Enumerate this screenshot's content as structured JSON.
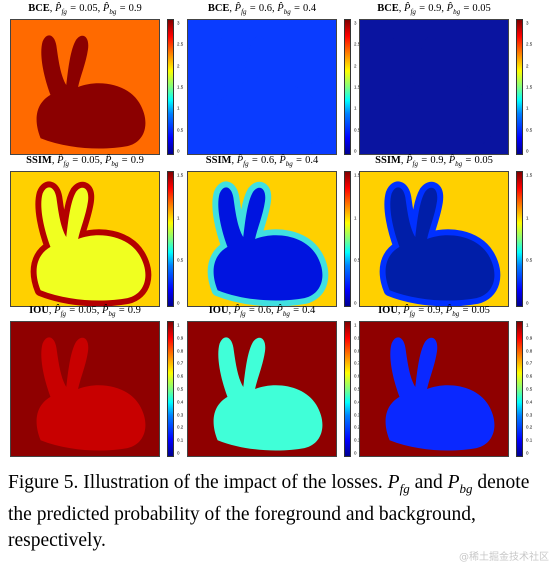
{
  "panels": [
    {
      "loss": "BCE",
      "fg": "0.05",
      "bg": "0.9",
      "bgColor": "#ff6a00",
      "rabbitColor": "#8b0000",
      "halo": "",
      "cbar": [
        "3",
        "2.5",
        "2",
        "1.5",
        "1",
        "0.5",
        "0"
      ]
    },
    {
      "loss": "BCE",
      "fg": "0.6",
      "bg": "0.4",
      "bgColor": "#0a3cff",
      "rabbitColor": "#0a3cff",
      "halo": "",
      "cbar": [
        "3",
        "2.5",
        "2",
        "1.5",
        "1",
        "0.5",
        "0"
      ]
    },
    {
      "loss": "BCE",
      "fg": "0.9",
      "bg": "0.05",
      "bgColor": "#0a14a0",
      "rabbitColor": "#0a14a0",
      "halo": "",
      "cbar": [
        "3",
        "2.5",
        "2",
        "1.5",
        "1",
        "0.5",
        "0"
      ]
    },
    {
      "loss": "SSIM",
      "fg": "0.05",
      "bg": "0.9",
      "bgColor": "#ffd000",
      "rabbitColor": "#f0ff20",
      "halo": "#b40000",
      "cbar": [
        "1.5",
        "1",
        "0.5",
        "0"
      ]
    },
    {
      "loss": "SSIM",
      "fg": "0.6",
      "bg": "0.4",
      "bgColor": "#ffd000",
      "rabbitColor": "#0014e0",
      "halo": "#40e0e0",
      "cbar": [
        "1.5",
        "1",
        "0.5",
        "0"
      ]
    },
    {
      "loss": "SSIM",
      "fg": "0.9",
      "bg": "0.05",
      "bgColor": "#ffd000",
      "rabbitColor": "#001ea8",
      "halo": "#0030ff",
      "cbar": [
        "1.5",
        "1",
        "0.5",
        "0"
      ]
    },
    {
      "loss": "IOU",
      "fg": "0.05",
      "bg": "0.9",
      "bgColor": "#8f0000",
      "rabbitColor": "#c80000",
      "halo": "",
      "cbar": [
        "1",
        "0.9",
        "0.8",
        "0.7",
        "0.6",
        "0.5",
        "0.4",
        "0.3",
        "0.2",
        "0.1",
        "0"
      ]
    },
    {
      "loss": "IOU",
      "fg": "0.6",
      "bg": "0.4",
      "bgColor": "#8f0000",
      "rabbitColor": "#40ffd8",
      "halo": "",
      "cbar": [
        "1",
        "0.9",
        "0.8",
        "0.7",
        "0.6",
        "0.5",
        "0.4",
        "0.3",
        "0.2",
        "0.1",
        "0"
      ]
    },
    {
      "loss": "IOU",
      "fg": "0.9",
      "bg": "0.05",
      "bgColor": "#8f0000",
      "rabbitColor": "#0a28ff",
      "halo": "",
      "cbar": [
        "1",
        "0.9",
        "0.8",
        "0.7",
        "0.6",
        "0.5",
        "0.4",
        "0.3",
        "0.2",
        "0.1",
        "0"
      ]
    }
  ],
  "caption": {
    "lead": "Figure 5.",
    "text1": "Illustration of the impact of the losses.",
    "pfg": "P",
    "fgSub": "fg",
    "and": "and",
    "pbg": "P",
    "bgSub": "bg",
    "text2": "denote the predicted probability of the foreground and background, respectively."
  },
  "watermark": "@稀土掘金技术社区"
}
